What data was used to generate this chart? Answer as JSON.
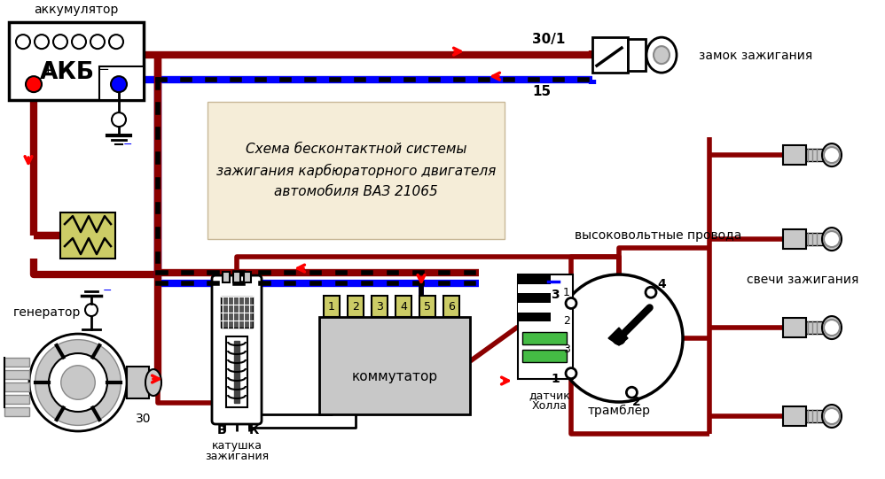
{
  "title": "Схема бесконтактной системы\nзажигания карбюраторного двигателя\nавтомобиля ВАЗ 21065",
  "bg_color": "#ffffff",
  "dark_red": "#8B0000",
  "red": "#FF0000",
  "blue": "#0000FF",
  "black": "#000000",
  "gray": "#888888",
  "light_gray": "#C8C8C8",
  "dark_gray": "#444444",
  "beige": "#F5EDD8",
  "yellow_green": "#CCCC66",
  "green": "#44BB44",
  "label_akb": "аккумулятор",
  "label_akb_short": "АКБ",
  "label_generator": "генератор",
  "label_katushka1": "катушка",
  "label_katushka2": "зажигания",
  "label_kommutator": "коммутатор",
  "label_datchik1": "датчик",
  "label_datchik2": "Холла",
  "label_trambler": "трамблер",
  "label_svichi": "свечи зажигания",
  "label_zamok": "замок зажигания",
  "label_vvprovoda": "высоковольтные провода",
  "label_30_1": "30/1",
  "label_15": "15",
  "label_30": "30",
  "label_B": "В",
  "label_K": "К"
}
